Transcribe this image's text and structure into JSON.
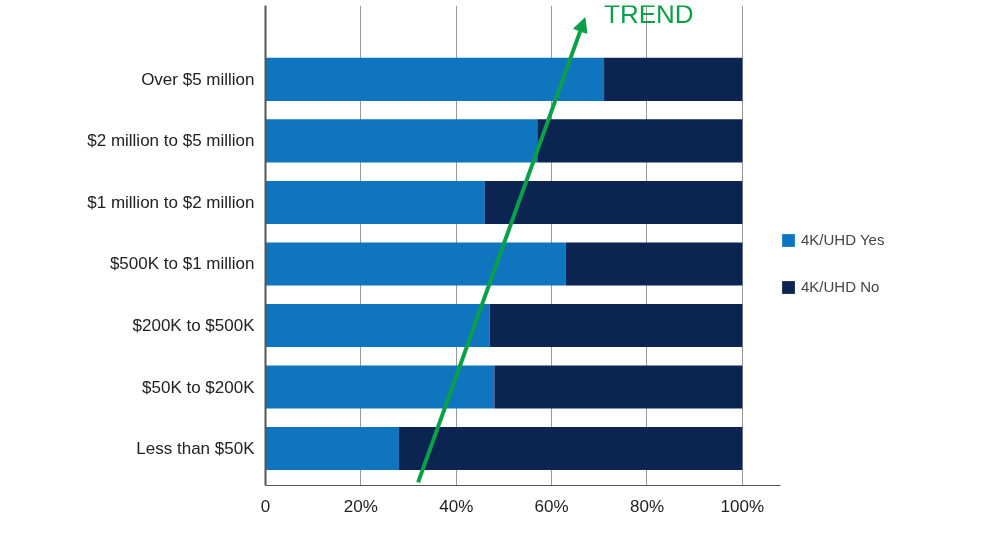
{
  "chart_data": {
    "type": "bar",
    "orientation": "horizontal",
    "stacked": true,
    "categories": [
      "Over $5 million",
      "$2 million to $5 million",
      "$1 million to $2 million",
      "$500K to $1 million",
      "$200K to $500K",
      "$50K to $200K",
      "Less than $50K"
    ],
    "series": [
      {
        "name": "4K/UHD Yes",
        "color": "#1075bf",
        "values": [
          71,
          57,
          46,
          63,
          47,
          48,
          28
        ]
      },
      {
        "name": "4K/UHD No",
        "color": "#0c2452",
        "values": [
          29,
          43,
          54,
          37,
          53,
          52,
          72
        ]
      }
    ],
    "xlim": [
      0,
      108
    ],
    "xticks": [
      0,
      {
        "value": 20,
        "label": "20%"
      },
      {
        "value": 40,
        "label": "40%"
      },
      {
        "value": 60,
        "label": "60%"
      },
      {
        "value": 80,
        "label": "80%"
      },
      {
        "value": 100,
        "label": "100%"
      }
    ],
    "grid": "x",
    "legend": "right",
    "annotations": [
      "TREND"
    ]
  }
}
